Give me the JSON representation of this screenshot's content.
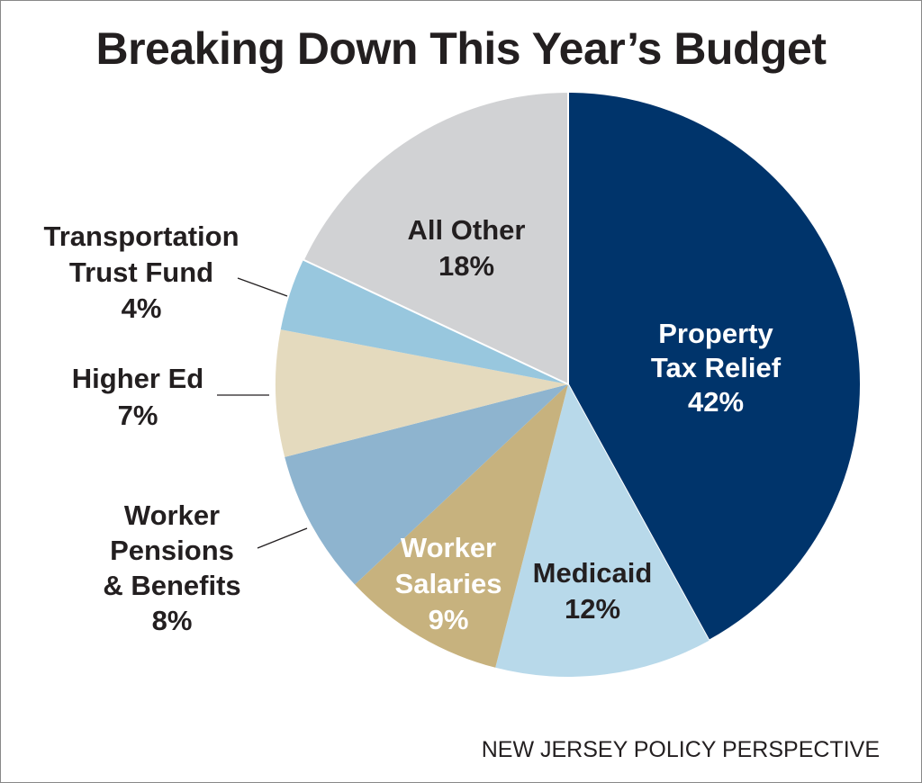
{
  "chart_data": {
    "type": "pie",
    "title": "Breaking Down This Year’s Budget",
    "source": "NEW JERSEY POLICY PERSPECTIVE",
    "start": "12 o'clock, clockwise",
    "slices": [
      {
        "name": "Property Tax Relief",
        "lines": [
          "Property",
          "Tax Relief",
          "42%"
        ],
        "value": 42,
        "color": "#00346b",
        "text_color": "#ffffff"
      },
      {
        "name": "Medicaid",
        "lines": [
          "Medicaid",
          "12%"
        ],
        "value": 12,
        "color": "#b8d9ea",
        "text_color": "#231f20"
      },
      {
        "name": "Worker Salaries",
        "lines": [
          "Worker",
          "Salaries",
          "9%"
        ],
        "value": 9,
        "color": "#c7b27e",
        "text_color": "#ffffff"
      },
      {
        "name": "Worker Pensions & Benefits",
        "lines": [
          "Worker",
          "Pensions",
          "& Benefits",
          "8%"
        ],
        "value": 8,
        "color": "#8eb4cf",
        "text_color": "#231f20"
      },
      {
        "name": "Higher Ed",
        "lines": [
          "Higher Ed",
          "7%"
        ],
        "value": 7,
        "color": "#e4dabe",
        "text_color": "#231f20"
      },
      {
        "name": "Transportation Trust Fund",
        "lines": [
          "Transportation",
          "Trust Fund",
          "4%"
        ],
        "value": 4,
        "color": "#98c7de",
        "text_color": "#231f20"
      },
      {
        "name": "All Other",
        "lines": [
          "All Other",
          "18%"
        ],
        "value": 18,
        "color": "#d1d2d4",
        "text_color": "#231f20"
      }
    ]
  }
}
